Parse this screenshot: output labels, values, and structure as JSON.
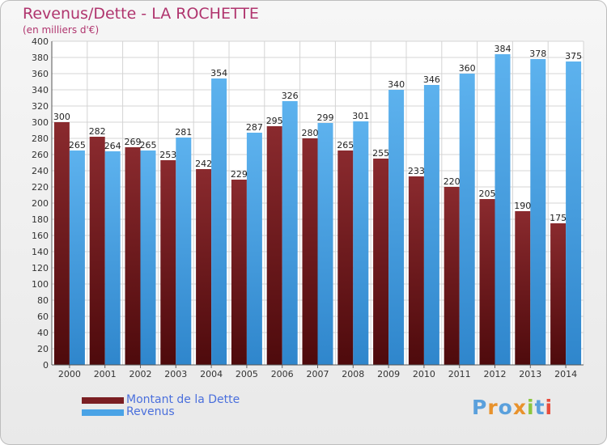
{
  "chart_data": {
    "type": "bar",
    "title": "Revenus/Dette - LA ROCHETTE",
    "subtitle": "(en milliers d'€)",
    "xlabel": "",
    "ylabel": "",
    "ylim": [
      0,
      400
    ],
    "ytick_step": 20,
    "grid": true,
    "categories": [
      "2000",
      "2001",
      "2002",
      "2003",
      "2004",
      "2005",
      "2006",
      "2007",
      "2008",
      "2009",
      "2010",
      "2011",
      "2012",
      "2013",
      "2014"
    ],
    "series": [
      {
        "name": "Montant de la Dette",
        "color": "#7a1e22",
        "values": [
          300,
          282,
          269,
          253,
          242,
          229,
          295,
          280,
          265,
          255,
          233,
          220,
          205,
          190,
          175
        ]
      },
      {
        "name": "Revenus",
        "color": "#4aa3e6",
        "values": [
          265,
          264,
          265,
          281,
          354,
          287,
          326,
          299,
          301,
          340,
          346,
          360,
          384,
          378,
          375
        ]
      }
    ],
    "legend_position": "bottom-left"
  },
  "legend": {
    "items": [
      {
        "label": "Montant de la Dette",
        "color": "#7a1e22"
      },
      {
        "label": "Revenus",
        "color": "#4aa3e6"
      }
    ]
  },
  "logo": {
    "text": "Proxiti",
    "letters": [
      "P",
      "r",
      "o",
      "x",
      "i",
      "t",
      "i"
    ],
    "colors": [
      "#5aa0dc",
      "#e8922c",
      "#5aa0dc",
      "#e8922c",
      "#8cc63e",
      "#5aa0dc",
      "#e84c3c"
    ]
  }
}
